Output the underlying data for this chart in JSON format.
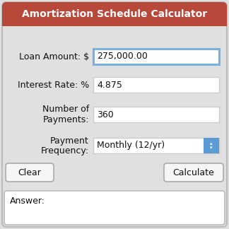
{
  "title": "Amortization Schedule Calculator",
  "title_bg": "#b8483a",
  "title_color": "#ffffff",
  "bg_color": "#e0e0e0",
  "outer_border_color": "#bbbbbb",
  "fields": [
    {
      "label1": "Loan Amount: $",
      "label2": "",
      "value": "275,000.00",
      "highlight": true,
      "dropdown": false
    },
    {
      "label1": "Interest Rate: %",
      "label2": "",
      "value": "4.875",
      "highlight": false,
      "dropdown": false
    },
    {
      "label1": "Number of",
      "label2": "Payments:",
      "value": "360",
      "highlight": false,
      "dropdown": false
    },
    {
      "label1": "Payment",
      "label2": "Frequency:",
      "value": "Monthly (12/yr)",
      "highlight": false,
      "dropdown": true
    }
  ],
  "button_left": "Clear",
  "button_right": "Calculate",
  "answer_label": "Answer:",
  "input_bg": "#ffffff",
  "input_border": "#cccccc",
  "input_highlight_border": "#7ab0dd",
  "dropdown_arrow_color": "#5b9bd5",
  "button_bg": "#f5f5f5",
  "button_border": "#aaaaaa",
  "answer_bg": "#ffffff",
  "answer_border": "#bbbbbb",
  "figsize": [
    3.24,
    3.24
  ],
  "dpi": 100
}
